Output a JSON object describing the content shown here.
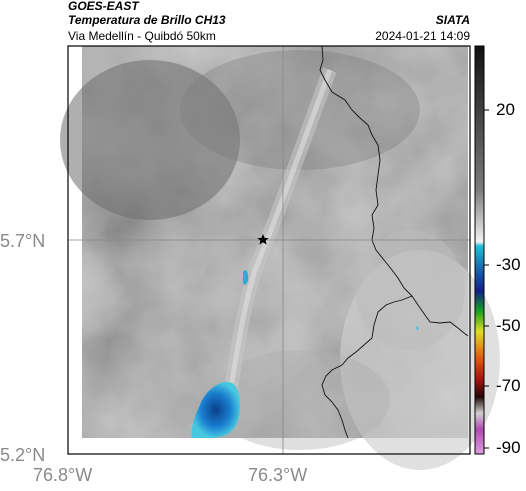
{
  "header": {
    "satellite": "GOES-EAST",
    "product": "Temperatura de Brillo CH13",
    "route": "Via Medellín - Quibdó 50km",
    "organization": "SIATA",
    "datetime": "2024-01-21 14:09"
  },
  "map": {
    "lat_ticks": [
      "5.7°N",
      "5.2°N"
    ],
    "lon_ticks": [
      "76.8°W",
      "76.3°W"
    ],
    "marker_icon": "star-icon"
  },
  "colorbar": {
    "labels": [
      "20",
      "-30",
      "-50",
      "-70",
      "-90"
    ]
  }
}
